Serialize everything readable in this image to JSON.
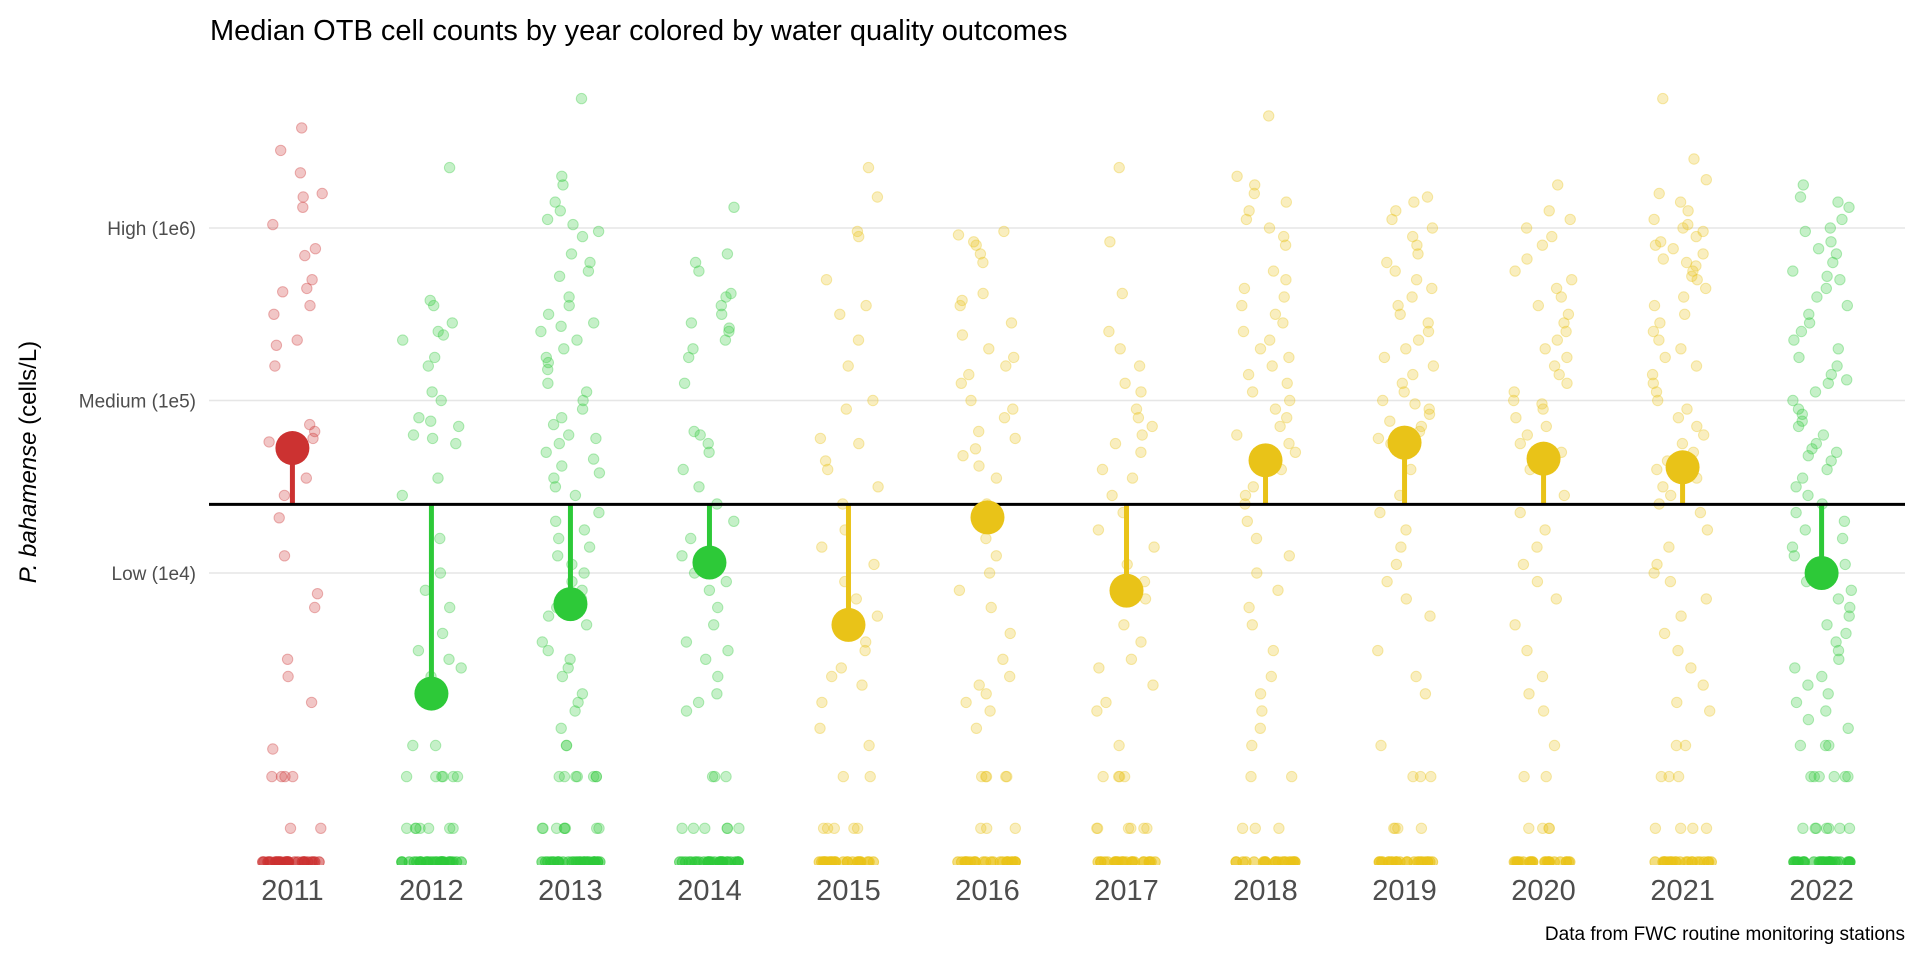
{
  "chart_data": {
    "type": "scatter",
    "title": "Median OTB cell counts by year colored by water quality outcomes",
    "ylabel_italic": "P. bahamense",
    "ylabel_rest": " (cells/L)",
    "xlabel": "",
    "caption": "Data from FWC routine monitoring stations",
    "y_scale": "log10",
    "ylim_log10": [
      2.3,
      6.85
    ],
    "y_ticks": [
      {
        "value": 1000000,
        "label": "High (1e6)"
      },
      {
        "value": 100000,
        "label": "Medium (1e5)"
      },
      {
        "value": 10000,
        "label": "Low (1e4)"
      }
    ],
    "threshold": 25000,
    "grid": true,
    "colors": {
      "red": "#CC3231",
      "green": "#2DC938",
      "yellow": "#E9C318",
      "threshold": "#000000",
      "grid": "#E6E6E6"
    },
    "categories": [
      "2011",
      "2012",
      "2013",
      "2014",
      "2015",
      "2016",
      "2017",
      "2018",
      "2019",
      "2020",
      "2021",
      "2022"
    ],
    "outcomes": [
      "red",
      "green",
      "green",
      "green",
      "yellow",
      "yellow",
      "yellow",
      "yellow",
      "yellow",
      "yellow",
      "yellow",
      "green"
    ],
    "medians": [
      53000,
      2000,
      6600,
      11500,
      5000,
      21000,
      7900,
      45000,
      57000,
      46000,
      41000,
      10000
    ],
    "zero_counts": [
      30,
      28,
      30,
      28,
      26,
      24,
      24,
      22,
      24,
      24,
      22,
      28
    ],
    "observations_log10": [
      [
        6.58,
        6.45,
        6.32,
        6.2,
        6.18,
        6.12,
        6.02,
        5.88,
        5.84,
        5.7,
        5.65,
        5.63,
        5.55,
        5.5,
        5.35,
        5.32,
        5.2,
        4.86,
        4.82,
        4.78,
        4.76,
        4.7,
        4.55,
        4.45,
        4.32,
        4.1,
        3.88,
        3.8,
        3.5,
        3.4,
        3.25,
        2.98,
        2.82,
        2.82,
        2.82,
        2.82,
        2.52,
        2.52
      ],
      [
        6.35,
        5.58,
        5.55,
        5.45,
        5.4,
        5.38,
        5.35,
        5.25,
        5.2,
        5.05,
        5.0,
        4.9,
        4.88,
        4.85,
        4.8,
        4.78,
        4.75,
        4.55,
        4.45,
        4.2,
        4.0,
        3.9,
        3.8,
        3.65,
        3.55,
        3.5,
        3.45,
        3.4,
        3.0,
        3.0,
        2.82,
        2.82,
        2.82,
        2.82,
        2.82,
        2.82,
        2.52,
        2.52,
        2.52,
        2.52,
        2.52,
        2.52,
        2.52
      ],
      [
        6.75,
        6.3,
        6.25,
        6.15,
        6.1,
        6.05,
        6.02,
        5.98,
        5.95,
        5.85,
        5.8,
        5.75,
        5.72,
        5.6,
        5.55,
        5.5,
        5.45,
        5.43,
        5.4,
        5.35,
        5.3,
        5.25,
        5.22,
        5.18,
        5.1,
        5.05,
        5.0,
        4.95,
        4.9,
        4.86,
        4.8,
        4.78,
        4.75,
        4.7,
        4.66,
        4.62,
        4.58,
        4.55,
        4.5,
        4.45,
        4.35,
        4.3,
        4.25,
        4.2,
        4.15,
        4.1,
        4.05,
        4.0,
        3.95,
        3.9,
        3.85,
        3.8,
        3.75,
        3.7,
        3.6,
        3.55,
        3.5,
        3.45,
        3.4,
        3.3,
        3.25,
        3.2,
        3.1,
        3.0,
        3.0,
        2.82,
        2.82,
        2.82,
        2.82,
        2.82,
        2.82,
        2.82,
        2.52,
        2.52,
        2.52,
        2.52,
        2.52,
        2.52,
        2.52,
        2.52
      ],
      [
        6.12,
        5.85,
        5.8,
        5.75,
        5.62,
        5.6,
        5.55,
        5.5,
        5.45,
        5.42,
        5.4,
        5.35,
        5.3,
        5.25,
        5.1,
        4.82,
        4.8,
        4.75,
        4.7,
        4.6,
        4.5,
        4.4,
        4.3,
        4.2,
        4.1,
        4.0,
        3.95,
        3.9,
        3.8,
        3.7,
        3.6,
        3.55,
        3.5,
        3.4,
        3.3,
        3.25,
        3.2,
        2.82,
        2.82,
        2.82,
        2.52,
        2.52,
        2.52,
        2.52,
        2.52,
        2.52
      ],
      [
        6.35,
        6.18,
        5.98,
        5.95,
        5.7,
        5.55,
        5.5,
        5.35,
        5.2,
        5.0,
        4.95,
        4.78,
        4.75,
        4.65,
        4.6,
        4.5,
        4.4,
        4.25,
        4.15,
        4.05,
        3.95,
        3.85,
        3.75,
        3.6,
        3.55,
        3.45,
        3.4,
        3.35,
        3.25,
        3.1,
        3.0,
        2.82,
        2.82,
        2.52,
        2.52,
        2.52,
        2.52,
        2.52
      ],
      [
        5.98,
        5.96,
        5.92,
        5.9,
        5.85,
        5.8,
        5.62,
        5.58,
        5.55,
        5.45,
        5.38,
        5.3,
        5.25,
        5.2,
        5.15,
        5.1,
        5.0,
        4.95,
        4.9,
        4.82,
        4.78,
        4.72,
        4.68,
        4.62,
        4.55,
        4.4,
        4.3,
        4.2,
        4.1,
        4.0,
        3.9,
        3.8,
        3.65,
        3.5,
        3.4,
        3.35,
        3.3,
        3.25,
        3.2,
        3.1,
        2.82,
        2.82,
        2.82,
        2.82,
        2.82,
        2.52,
        2.52,
        2.52
      ],
      [
        6.35,
        5.92,
        5.62,
        5.4,
        5.3,
        5.2,
        5.1,
        5.05,
        4.95,
        4.9,
        4.85,
        4.8,
        4.75,
        4.7,
        4.6,
        4.55,
        4.45,
        4.35,
        4.25,
        4.15,
        4.05,
        3.95,
        3.85,
        3.7,
        3.6,
        3.5,
        3.45,
        3.35,
        3.25,
        3.2,
        3.0,
        2.82,
        2.82,
        2.82,
        2.82,
        2.52,
        2.52,
        2.52,
        2.52,
        2.52,
        2.52
      ],
      [
        6.65,
        6.3,
        6.25,
        6.2,
        6.15,
        6.1,
        6.05,
        6.0,
        5.95,
        5.9,
        5.75,
        5.7,
        5.65,
        5.6,
        5.55,
        5.5,
        5.45,
        5.4,
        5.35,
        5.3,
        5.25,
        5.2,
        5.15,
        5.1,
        5.05,
        5.0,
        4.95,
        4.9,
        4.85,
        4.8,
        4.75,
        4.7,
        4.6,
        4.5,
        4.45,
        4.4,
        4.3,
        4.2,
        4.1,
        4.0,
        3.9,
        3.8,
        3.7,
        3.55,
        3.4,
        3.3,
        3.2,
        3.1,
        3.0,
        2.82,
        2.82,
        2.52,
        2.52,
        2.52
      ],
      [
        6.18,
        6.15,
        6.1,
        6.05,
        6.0,
        5.95,
        5.9,
        5.85,
        5.8,
        5.75,
        5.7,
        5.65,
        5.6,
        5.55,
        5.5,
        5.45,
        5.4,
        5.35,
        5.3,
        5.25,
        5.2,
        5.15,
        5.1,
        5.05,
        5.0,
        4.98,
        4.95,
        4.92,
        4.88,
        4.85,
        4.82,
        4.78,
        4.75,
        4.7,
        4.6,
        4.45,
        4.35,
        4.25,
        4.15,
        4.05,
        3.95,
        3.85,
        3.75,
        3.55,
        3.4,
        3.3,
        3.0,
        2.82,
        2.82,
        2.82,
        2.52,
        2.52,
        2.52,
        2.52
      ],
      [
        6.25,
        6.1,
        6.05,
        6.0,
        5.95,
        5.9,
        5.82,
        5.75,
        5.7,
        5.65,
        5.6,
        5.55,
        5.5,
        5.45,
        5.4,
        5.35,
        5.3,
        5.25,
        5.2,
        5.15,
        5.1,
        5.05,
        5.0,
        4.98,
        4.95,
        4.9,
        4.85,
        4.8,
        4.75,
        4.7,
        4.6,
        4.45,
        4.35,
        4.25,
        4.15,
        4.05,
        3.95,
        3.85,
        3.7,
        3.55,
        3.4,
        3.3,
        3.2,
        3.0,
        2.82,
        2.82,
        2.52,
        2.52,
        2.52,
        2.52
      ],
      [
        6.75,
        6.4,
        6.28,
        6.2,
        6.15,
        6.1,
        6.05,
        6.02,
        6.0,
        5.98,
        5.95,
        5.92,
        5.9,
        5.88,
        5.85,
        5.82,
        5.8,
        5.78,
        5.75,
        5.72,
        5.7,
        5.65,
        5.6,
        5.55,
        5.5,
        5.45,
        5.4,
        5.35,
        5.3,
        5.25,
        5.2,
        5.15,
        5.1,
        5.05,
        5.0,
        4.95,
        4.9,
        4.85,
        4.8,
        4.75,
        4.7,
        4.65,
        4.6,
        4.55,
        4.5,
        4.45,
        4.4,
        4.35,
        4.25,
        4.15,
        4.05,
        4.0,
        3.95,
        3.85,
        3.75,
        3.65,
        3.55,
        3.45,
        3.35,
        3.25,
        3.2,
        3.0,
        3.0,
        2.82,
        2.82,
        2.82,
        2.52,
        2.52,
        2.52,
        2.52
      ],
      [
        6.25,
        6.18,
        6.15,
        6.12,
        6.05,
        6.0,
        5.98,
        5.92,
        5.88,
        5.85,
        5.8,
        5.75,
        5.72,
        5.7,
        5.65,
        5.6,
        5.55,
        5.5,
        5.45,
        5.4,
        5.35,
        5.3,
        5.25,
        5.2,
        5.15,
        5.12,
        5.1,
        5.05,
        5.0,
        4.95,
        4.92,
        4.88,
        4.85,
        4.8,
        4.75,
        4.72,
        4.7,
        4.68,
        4.65,
        4.6,
        4.55,
        4.5,
        4.45,
        4.4,
        4.35,
        4.3,
        4.25,
        4.2,
        4.15,
        4.1,
        4.05,
        4.0,
        3.98,
        3.95,
        3.9,
        3.85,
        3.8,
        3.75,
        3.7,
        3.65,
        3.6,
        3.55,
        3.5,
        3.45,
        3.4,
        3.35,
        3.3,
        3.25,
        3.2,
        3.15,
        3.1,
        3.0,
        3.0,
        3.0,
        2.82,
        2.82,
        2.82,
        2.82,
        2.82,
        2.82,
        2.52,
        2.52,
        2.52,
        2.52,
        2.52,
        2.52,
        2.52
      ]
    ]
  }
}
